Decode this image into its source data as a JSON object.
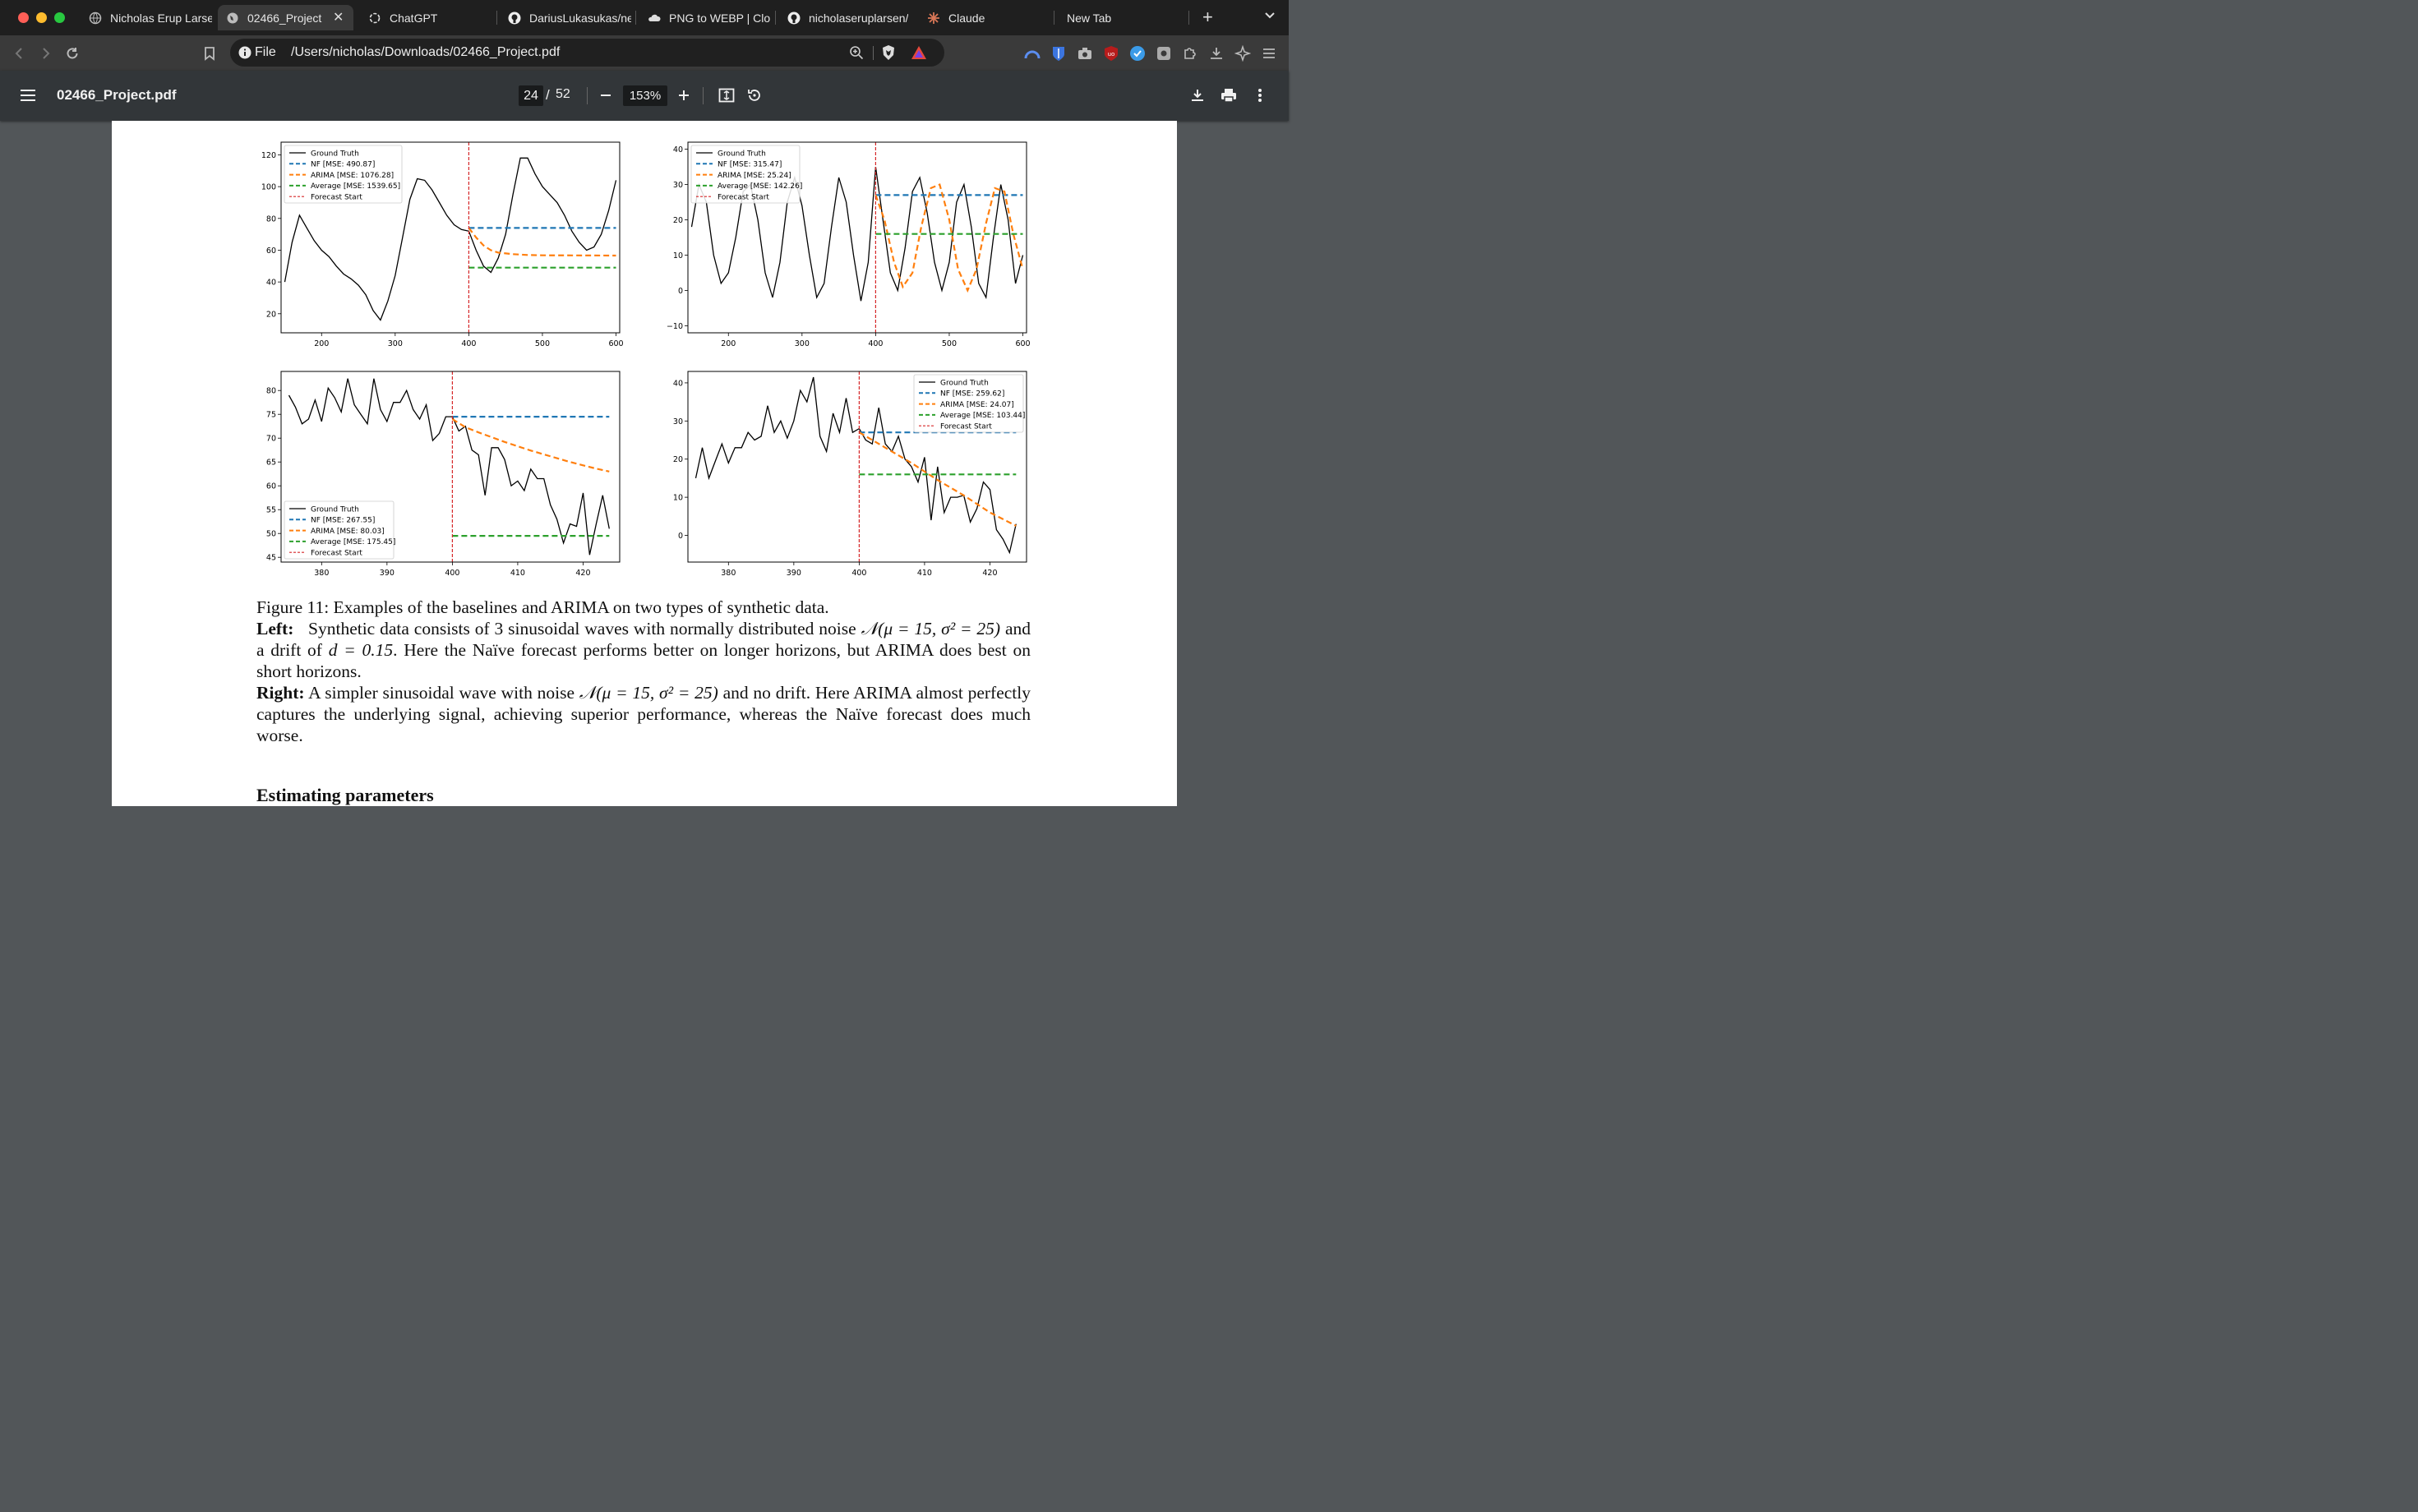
{
  "browser": {
    "tabs": [
      {
        "label": "Nicholas Erup Larse",
        "icon": "globe-icon",
        "active": false
      },
      {
        "label": "02466_Project",
        "icon": "globe-icon",
        "active": true
      },
      {
        "label": "ChatGPT",
        "icon": "chatgpt-icon",
        "active": false
      },
      {
        "label": "DariusLukasukas/ne",
        "icon": "github-icon",
        "active": false
      },
      {
        "label": "PNG to WEBP | Clou",
        "icon": "cloud-icon",
        "active": false
      },
      {
        "label": "nicholaseruplarsen/",
        "icon": "github-icon",
        "active": false
      },
      {
        "label": "Claude",
        "icon": "claude-icon",
        "active": false
      },
      {
        "label": "New Tab",
        "icon": "",
        "active": false
      }
    ],
    "address": {
      "scheme_label": "File",
      "url": "/Users/nicholas/Downloads/02466_Project.pdf"
    }
  },
  "pdf_viewer": {
    "filename": "02466_Project.pdf",
    "current_page": "24",
    "page_separator": "/",
    "total_pages": "52",
    "zoom": "153%"
  },
  "document": {
    "caption_line1": "Figure 11: Examples of the baselines and ARIMA on two types of synthetic data.",
    "left_label": "Left:",
    "left_text_a": "Synthetic data consists of 3 sinusoidal waves with normally distributed noise",
    "left_math": "𝒩(μ = 15, σ² = 25)",
    "left_text_b": "and a drift of",
    "left_math2": "d = 0.15",
    "left_text_c": ". Here the Naïve forecast performs better on longer horizons, but ARIMA does best on short horizons.",
    "right_label": "Right:",
    "right_text_a": "A simpler sinusoidal wave with noise",
    "right_math": "𝒩(μ = 15, σ² = 25)",
    "right_text_b": "and no drift. Here ARIMA almost perfectly captures the underlying signal, achieving superior performance, whereas the Naïve forecast does much worse.",
    "section_heading": "Estimating parameters"
  },
  "chart_data": [
    {
      "type": "line",
      "x_ticks": [
        200,
        300,
        400,
        500,
        600
      ],
      "y_ticks": [
        20,
        40,
        60,
        80,
        100,
        120
      ],
      "xlim": [
        145,
        605
      ],
      "ylim": [
        8,
        128
      ],
      "legend_position": "top-left",
      "forecast_start": 400,
      "series": [
        {
          "name": "Ground Truth",
          "color": "#000000",
          "style": "solid",
          "x": [
            150,
            160,
            170,
            180,
            190,
            200,
            210,
            220,
            230,
            240,
            250,
            260,
            270,
            280,
            290,
            300,
            310,
            320,
            330,
            340,
            350,
            360,
            370,
            380,
            390,
            400,
            410,
            420,
            430,
            440,
            450,
            460,
            470,
            480,
            490,
            500,
            510,
            520,
            530,
            540,
            550,
            560,
            570,
            580,
            590,
            600
          ],
          "values": [
            40,
            65,
            82,
            74,
            66,
            60,
            56,
            50,
            45,
            42,
            38,
            32,
            22,
            16,
            28,
            44,
            68,
            92,
            105,
            104,
            98,
            90,
            82,
            76,
            73,
            72,
            60,
            50,
            46,
            55,
            70,
            95,
            118,
            118,
            108,
            100,
            95,
            90,
            82,
            72,
            65,
            60,
            62,
            70,
            85,
            104
          ]
        },
        {
          "name": "NF [MSE: 490.87]",
          "color": "#1f77b4",
          "style": "dashed",
          "x": [
            400,
            600
          ],
          "values": [
            74,
            74
          ]
        },
        {
          "name": "ARIMA [MSE: 1076.28]",
          "color": "#ff7f0e",
          "style": "dashed",
          "x": [
            400,
            410,
            420,
            430,
            440,
            460,
            480,
            500,
            540,
            600
          ],
          "values": [
            74,
            68,
            63,
            60,
            58.5,
            57.5,
            57,
            56.8,
            56.7,
            56.6
          ]
        },
        {
          "name": "Average [MSE: 1539.65]",
          "color": "#2ca02c",
          "style": "dashed",
          "x": [
            400,
            600
          ],
          "values": [
            49,
            49
          ]
        },
        {
          "name": "Forecast Start",
          "color": "#d62728",
          "style": "dashed-vertical",
          "x": [
            400,
            400
          ],
          "values": [
            8,
            128
          ]
        }
      ]
    },
    {
      "type": "line",
      "x_ticks": [
        200,
        300,
        400,
        500,
        600
      ],
      "y_ticks": [
        -10,
        0,
        10,
        20,
        30,
        40
      ],
      "xlim": [
        145,
        605
      ],
      "ylim": [
        -12,
        42
      ],
      "legend_position": "top-left",
      "forecast_start": 400,
      "series": [
        {
          "name": "Ground Truth",
          "color": "#000000",
          "style": "solid",
          "x": [
            150,
            160,
            170,
            180,
            190,
            200,
            210,
            220,
            230,
            240,
            250,
            260,
            270,
            280,
            290,
            300,
            310,
            320,
            330,
            340,
            350,
            360,
            370,
            380,
            390,
            400,
            410,
            420,
            430,
            440,
            450,
            460,
            470,
            480,
            490,
            500,
            510,
            520,
            530,
            540,
            550,
            560,
            570,
            580,
            590,
            600
          ],
          "values": [
            18,
            30,
            25,
            10,
            2,
            5,
            15,
            28,
            30,
            20,
            5,
            -2,
            8,
            25,
            32,
            24,
            10,
            -2,
            2,
            18,
            32,
            25,
            10,
            -3,
            8,
            35,
            20,
            5,
            0,
            12,
            28,
            32,
            22,
            8,
            0,
            8,
            25,
            30,
            18,
            2,
            -2,
            15,
            30,
            20,
            2,
            10
          ]
        },
        {
          "name": "NF [MSE: 315.47]",
          "color": "#1f77b4",
          "style": "dashed",
          "x": [
            400,
            600
          ],
          "values": [
            27,
            27
          ]
        },
        {
          "name": "ARIMA [MSE: 25.24]",
          "color": "#ff7f0e",
          "style": "dashed",
          "x": [
            400,
            412,
            425,
            437,
            450,
            462,
            475,
            487,
            500,
            512,
            525,
            537,
            550,
            562,
            575,
            587,
            600
          ],
          "values": [
            27,
            20,
            8,
            1,
            5,
            18,
            29,
            30,
            20,
            6,
            0,
            6,
            19,
            29,
            28,
            16,
            6
          ]
        },
        {
          "name": "Average [MSE: 142.26]",
          "color": "#2ca02c",
          "style": "dashed",
          "x": [
            400,
            600
          ],
          "values": [
            16,
            16
          ]
        },
        {
          "name": "Forecast Start",
          "color": "#d62728",
          "style": "dashed-vertical",
          "x": [
            400,
            400
          ],
          "values": [
            -12,
            42
          ]
        }
      ]
    },
    {
      "type": "line",
      "x_ticks": [
        380,
        390,
        400,
        410,
        420
      ],
      "y_ticks": [
        45,
        50,
        55,
        60,
        65,
        70,
        75,
        80
      ],
      "xlim": [
        373.8,
        425.6
      ],
      "ylim": [
        44,
        84
      ],
      "legend_position": "lower-left",
      "forecast_start": 400,
      "series": [
        {
          "name": "Ground Truth",
          "color": "#000000",
          "style": "solid",
          "x": [
            375,
            376,
            377,
            378,
            379,
            380,
            381,
            382,
            383,
            384,
            385,
            386,
            387,
            388,
            389,
            390,
            391,
            392,
            393,
            394,
            395,
            396,
            397,
            398,
            399,
            400,
            401,
            402,
            403,
            404,
            405,
            406,
            407,
            408,
            409,
            410,
            411,
            412,
            413,
            414,
            415,
            416,
            417,
            418,
            419,
            420,
            421,
            422,
            423,
            424
          ],
          "values": [
            79,
            76.5,
            73,
            74,
            78,
            73.5,
            80.5,
            78.5,
            75.5,
            82.5,
            77,
            75,
            73,
            82.5,
            76,
            73.5,
            77.5,
            77.5,
            80,
            76,
            74,
            77,
            69.5,
            71,
            74.5,
            74.5,
            71.5,
            72.5,
            67.5,
            66.5,
            58,
            68,
            68,
            65.5,
            60,
            61,
            59,
            63.5,
            61.5,
            61.5,
            56,
            53,
            48,
            52,
            51.5,
            58.5,
            45.5,
            52,
            58,
            51
          ]
        },
        {
          "name": "NF [MSE: 267.55]",
          "color": "#1f77b4",
          "style": "dashed",
          "x": [
            400,
            424
          ],
          "values": [
            74.5,
            74.5
          ]
        },
        {
          "name": "ARIMA [MSE: 80.03]",
          "color": "#ff7f0e",
          "style": "dashed",
          "x": [
            400,
            402,
            404,
            406,
            408,
            410,
            412,
            414,
            416,
            418,
            420,
            422,
            424
          ],
          "values": [
            74,
            72.3,
            71.2,
            70.2,
            69.2,
            68.3,
            67.4,
            66.6,
            65.8,
            65,
            64.3,
            63.6,
            63
          ]
        },
        {
          "name": "Average [MSE: 175.45]",
          "color": "#2ca02c",
          "style": "dashed",
          "x": [
            400,
            424
          ],
          "values": [
            49.5,
            49.5
          ]
        },
        {
          "name": "Forecast Start",
          "color": "#d62728",
          "style": "dashed-vertical",
          "x": [
            400,
            400
          ],
          "values": [
            44,
            84
          ]
        }
      ]
    },
    {
      "type": "line",
      "x_ticks": [
        380,
        390,
        400,
        410,
        420
      ],
      "y_ticks": [
        0,
        10,
        20,
        30,
        40
      ],
      "xlim": [
        373.8,
        425.6
      ],
      "ylim": [
        -7,
        43
      ],
      "legend_position": "top-right",
      "forecast_start": 400,
      "series": [
        {
          "name": "Ground Truth",
          "color": "#000000",
          "style": "solid",
          "x": [
            375,
            376,
            377,
            378,
            379,
            380,
            381,
            382,
            383,
            384,
            385,
            386,
            387,
            388,
            389,
            390,
            391,
            392,
            393,
            394,
            395,
            396,
            397,
            398,
            399,
            400,
            401,
            402,
            403,
            404,
            405,
            406,
            407,
            408,
            409,
            410,
            411,
            412,
            413,
            414,
            415,
            416,
            417,
            418,
            419,
            420,
            421,
            422,
            423,
            424
          ],
          "values": [
            15,
            23,
            15,
            19.5,
            24,
            19,
            23,
            23,
            27,
            25,
            26,
            34,
            27,
            30,
            25.5,
            30,
            38,
            35,
            41.5,
            26,
            22,
            32,
            27,
            36,
            27,
            28,
            25,
            24,
            33.5,
            24,
            22,
            26,
            20,
            18,
            14,
            20.5,
            4,
            18,
            6,
            10,
            10,
            10.5,
            3.5,
            7,
            14,
            12,
            1.5,
            -1,
            -4.5,
            3
          ]
        },
        {
          "name": "NF [MSE: 259.62]",
          "color": "#1f77b4",
          "style": "dashed",
          "x": [
            400,
            424
          ],
          "values": [
            27,
            27
          ]
        },
        {
          "name": "ARIMA [MSE: 24.07]",
          "color": "#ff7f0e",
          "style": "dashed",
          "x": [
            400,
            404,
            408,
            412,
            416,
            420,
            424
          ],
          "values": [
            27,
            23,
            19,
            14.5,
            10.5,
            6,
            2.5
          ]
        },
        {
          "name": "Average [MSE: 103.44]",
          "color": "#2ca02c",
          "style": "dashed",
          "x": [
            400,
            424
          ],
          "values": [
            16,
            16
          ]
        },
        {
          "name": "Forecast Start",
          "color": "#d62728",
          "style": "dashed-vertical",
          "x": [
            400,
            400
          ],
          "values": [
            -7,
            43
          ]
        }
      ]
    }
  ]
}
